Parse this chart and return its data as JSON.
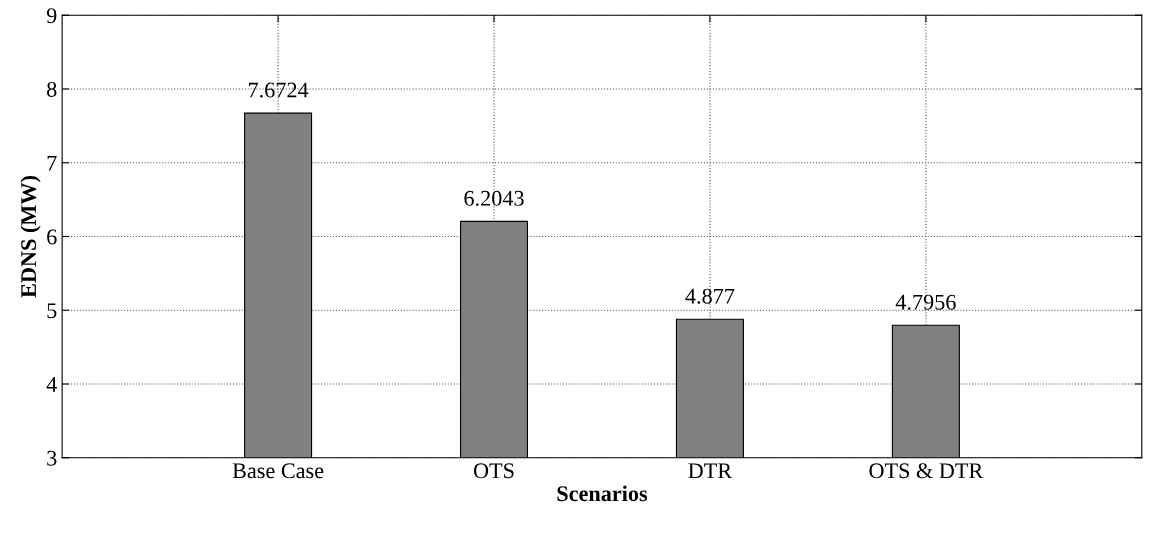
{
  "chart_data": {
    "type": "bar",
    "xlabel": "Scenarios",
    "ylabel": "EDNS (MW)",
    "categories": [
      "Base Case",
      "OTS",
      "DTR",
      "OTS & DTR"
    ],
    "values": [
      7.6724,
      6.2043,
      4.877,
      4.7956
    ],
    "color": "#808080",
    "ylim": [
      3,
      9
    ],
    "yticks": [
      3,
      4,
      5,
      6,
      7,
      8,
      9
    ],
    "grid": true,
    "data_labels": true
  }
}
